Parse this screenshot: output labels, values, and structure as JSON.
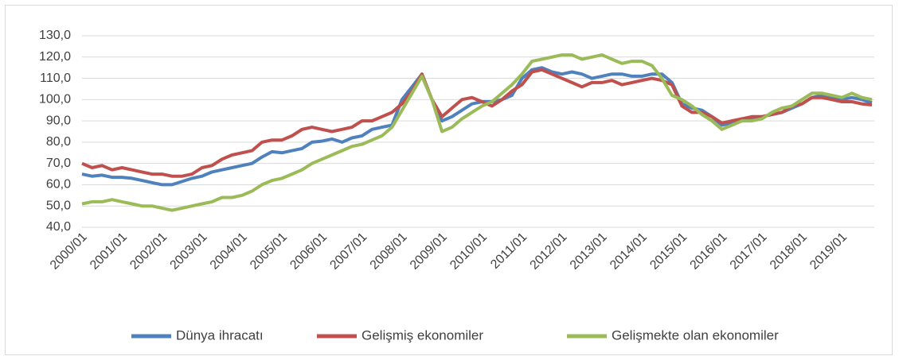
{
  "chart_data": {
    "type": "line",
    "categories": [
      "2000/01",
      null,
      null,
      null,
      "2001/01",
      null,
      null,
      null,
      "2002/01",
      null,
      null,
      null,
      "2003/01",
      null,
      null,
      null,
      "2004/01",
      null,
      null,
      null,
      "2005/01",
      null,
      null,
      null,
      "2006/01",
      null,
      null,
      null,
      "2007/01",
      null,
      null,
      null,
      "2008/01",
      null,
      null,
      null,
      "2009/01",
      null,
      null,
      null,
      "2010/01",
      null,
      null,
      null,
      "2011/01",
      null,
      null,
      null,
      "2012/01",
      null,
      null,
      null,
      "2013/01",
      null,
      null,
      null,
      "2014/01",
      null,
      null,
      null,
      "2015/01",
      null,
      null,
      null,
      "2016/01",
      null,
      null,
      null,
      "2017/01",
      null,
      null,
      null,
      "2018/01",
      null,
      null,
      null,
      "2019/01",
      null,
      null,
      null
    ],
    "series": [
      {
        "name": "Dünya ihracatı",
        "color": "#4f81bd",
        "values": [
          65,
          64,
          64.5,
          63.5,
          63.5,
          63,
          62,
          61,
          60,
          60,
          61.5,
          63,
          64,
          66,
          67,
          68,
          69,
          70,
          73,
          75.5,
          75,
          76,
          77,
          80,
          80.5,
          81.5,
          80,
          82,
          83,
          86,
          87,
          88,
          100,
          106,
          112,
          100,
          90,
          92,
          95,
          98,
          99,
          99,
          100,
          102,
          110,
          114,
          115,
          113,
          112,
          113,
          112,
          110,
          111,
          112,
          112,
          111,
          111,
          112,
          112,
          108,
          98,
          96,
          95,
          92,
          88,
          89,
          90,
          91,
          92,
          93,
          94,
          96,
          98,
          101,
          102,
          101,
          100,
          101,
          100,
          98.5
        ]
      },
      {
        "name": "Gelişmiş ekonomiler",
        "color": "#c0504d",
        "values": [
          70,
          68,
          69,
          67,
          68,
          67,
          66,
          65,
          65,
          64,
          64,
          65,
          68,
          69,
          72,
          74,
          75,
          76,
          80,
          81,
          81,
          83,
          86,
          87,
          86,
          85,
          86,
          87,
          90,
          90,
          92,
          94,
          98,
          104,
          112,
          100,
          92,
          96,
          100,
          101,
          99,
          97,
          100,
          104,
          107,
          113,
          114,
          112,
          110,
          108,
          106,
          108,
          108,
          109,
          107,
          108,
          109,
          110,
          109,
          107,
          97,
          94,
          94,
          92,
          89,
          90,
          91,
          92,
          92,
          93,
          94,
          97,
          98,
          101,
          101,
          100,
          99,
          99,
          98,
          97.5
        ]
      },
      {
        "name": "Gelişmekte olan ekonomiler",
        "color": "#9bbb59",
        "values": [
          51,
          52,
          52,
          53,
          52,
          51,
          50,
          50,
          49,
          48,
          49,
          50,
          51,
          52,
          54,
          54,
          55,
          57,
          60,
          62,
          63,
          65,
          67,
          70,
          72,
          74,
          76,
          78,
          79,
          81,
          83,
          87,
          95,
          103,
          111,
          100,
          85,
          87,
          91,
          94,
          97,
          99,
          103,
          107,
          112,
          118,
          119,
          120,
          121,
          121,
          119,
          120,
          121,
          119,
          117,
          118,
          118,
          116,
          110,
          102,
          100,
          97,
          93,
          90,
          86,
          88,
          90,
          90,
          91,
          94,
          96,
          97,
          100,
          103,
          103,
          102,
          101,
          103,
          101,
          100
        ]
      }
    ],
    "ylim": [
      40,
      130
    ],
    "yticks": [
      {
        "value": 40,
        "label": "40,0"
      },
      {
        "value": 50,
        "label": "50,0"
      },
      {
        "value": 60,
        "label": "60,0"
      },
      {
        "value": 70,
        "label": "70,0"
      },
      {
        "value": 80,
        "label": "80,0"
      },
      {
        "value": 90,
        "label": "90,0"
      },
      {
        "value": 100,
        "label": "100,0"
      },
      {
        "value": 110,
        "label": "110,0"
      },
      {
        "value": 120,
        "label": "120,0"
      },
      {
        "value": 130,
        "label": "130,0"
      }
    ],
    "grid": true,
    "legend": "bottom"
  }
}
